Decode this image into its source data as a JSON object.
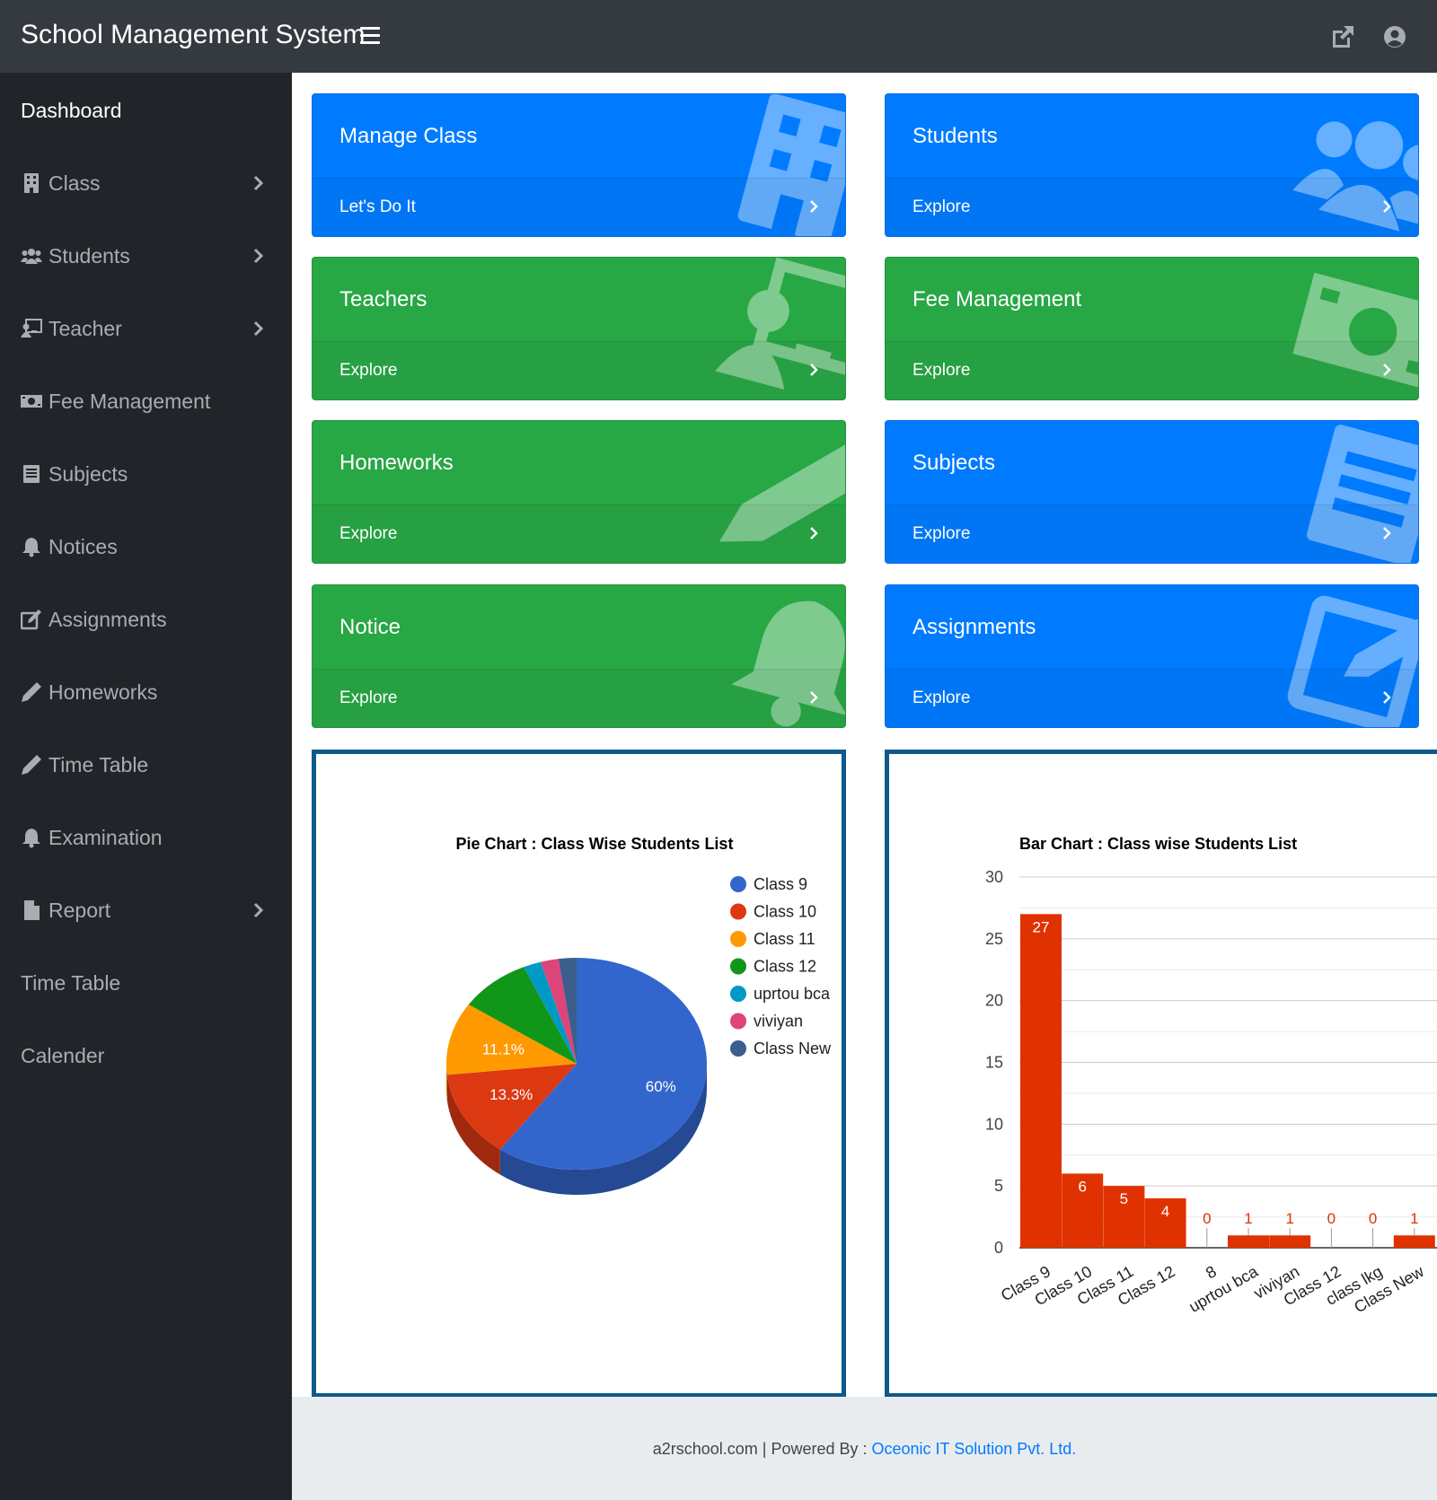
{
  "app": {
    "title": "School Management System"
  },
  "sidebar": {
    "items": [
      {
        "label": "Dashboard",
        "icon": "",
        "chevron": false
      },
      {
        "label": "Class",
        "icon": "building-icon",
        "chevron": true
      },
      {
        "label": "Students",
        "icon": "users-icon",
        "chevron": true
      },
      {
        "label": "Teacher",
        "icon": "chalkboard-teacher-icon",
        "chevron": true
      },
      {
        "label": "Fee Management",
        "icon": "money-bill-icon",
        "chevron": false
      },
      {
        "label": "Subjects",
        "icon": "book-icon",
        "chevron": false
      },
      {
        "label": "Notices",
        "icon": "bell-icon",
        "chevron": false
      },
      {
        "label": "Assignments",
        "icon": "edit-icon",
        "chevron": false
      },
      {
        "label": "Homeworks",
        "icon": "pencil-icon",
        "chevron": false
      },
      {
        "label": "Time Table",
        "icon": "pencil-icon",
        "chevron": false
      },
      {
        "label": "Examination",
        "icon": "bell-icon",
        "chevron": false
      },
      {
        "label": "Report",
        "icon": "file-icon",
        "chevron": true
      },
      {
        "label": "Time Table",
        "icon": "",
        "chevron": false
      },
      {
        "label": "Calender",
        "icon": "",
        "chevron": false
      }
    ]
  },
  "cards": [
    {
      "title": "Manage Class",
      "link": "Let's Do It",
      "color": "#007bff",
      "icon": "building-icon"
    },
    {
      "title": "Students",
      "link": "Explore",
      "color": "#007bff",
      "icon": "users-icon"
    },
    {
      "title": "Teachers",
      "link": "Explore",
      "color": "#28a745",
      "icon": "chalkboard-teacher-icon"
    },
    {
      "title": "Fee Management",
      "link": "Explore",
      "color": "#28a745",
      "icon": "money-bill-icon"
    },
    {
      "title": "Homeworks",
      "link": "Explore",
      "color": "#28a745",
      "icon": "pencil-icon"
    },
    {
      "title": "Subjects",
      "link": "Explore",
      "color": "#007bff",
      "icon": "book-icon"
    },
    {
      "title": "Notice",
      "link": "Explore",
      "color": "#28a745",
      "icon": "bell-icon"
    },
    {
      "title": "Assignments",
      "link": "Explore",
      "color": "#007bff",
      "icon": "edit-icon"
    }
  ],
  "chart_data": [
    {
      "type": "pie",
      "title": "Pie Chart : Class Wise Students List",
      "categories": [
        "Class 9",
        "Class 10",
        "Class 11",
        "Class 12",
        "uprtou bca",
        "viviyan",
        "Class New"
      ],
      "values": [
        27,
        6,
        5,
        4,
        1,
        1,
        1
      ],
      "colors": [
        "#3366cc",
        "#dc3912",
        "#ff9900",
        "#109618",
        "#0099c6",
        "#dd4477",
        "#3b5e8c"
      ],
      "slice_labels": [
        "60%",
        "13.3%",
        "11.1%",
        "",
        "",
        "",
        ""
      ],
      "legend": "right",
      "is3D": true
    },
    {
      "type": "bar",
      "title": "Bar Chart : Class wise Students List",
      "categories": [
        "Class 9",
        "Class 10",
        "Class 11",
        "Class 12",
        "8",
        "uprtou bca",
        "viviyan",
        "Class 12",
        "class lkg",
        "Class New"
      ],
      "values": [
        27,
        6,
        5,
        4,
        0,
        1,
        1,
        0,
        0,
        1
      ],
      "ylim": [
        0,
        30
      ],
      "yticks": [
        0,
        5,
        10,
        15,
        20,
        25,
        30
      ],
      "color": "#e03200",
      "grid": true
    }
  ],
  "footer": {
    "site": "a2rschool.com",
    "separator": " | Powered By : ",
    "company": "Oceonic IT Solution Pvt. Ltd."
  }
}
